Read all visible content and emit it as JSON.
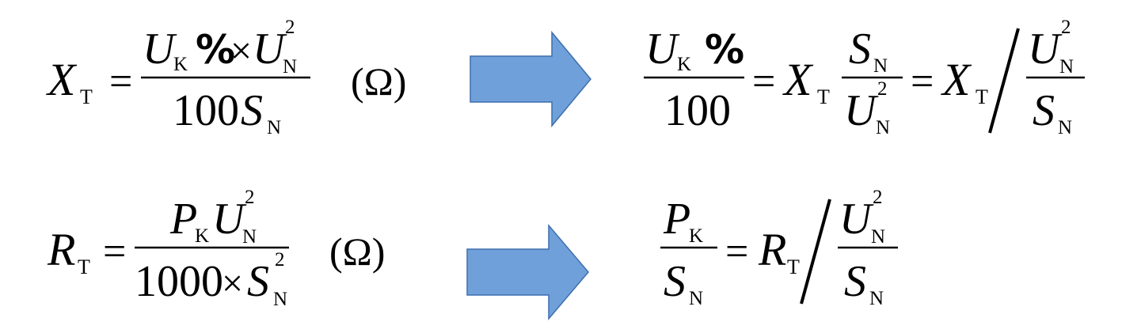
{
  "formulas": {
    "xt": {
      "lhs_main": "X",
      "lhs_sub": "T",
      "equals": "=",
      "num_u1": "U",
      "num_k": "K",
      "num_pct": "%",
      "num_times": "×",
      "num_u2": "U",
      "num_n1": "N",
      "num_sq": "2",
      "den_100": "100",
      "den_s": "S",
      "den_n": "N",
      "unit": "(Ω)"
    },
    "xt_derived": {
      "frac_u": "U",
      "frac_k": "K",
      "frac_pct": "%",
      "frac_den": "100",
      "eq1": "=",
      "x1": "X",
      "t1": "T",
      "s_num": "S",
      "s_num_n": "N",
      "u_den": "U",
      "u_den_n": "N",
      "u_den_sq": "2",
      "eq2": "=",
      "x2": "X",
      "t2": "T",
      "r_num_u": "U",
      "r_num_n": "N",
      "r_num_sq": "2",
      "r_den_s": "S",
      "r_den_n": "N"
    },
    "rt": {
      "lhs_main": "R",
      "lhs_sub": "T",
      "equals": "=",
      "num_p": "P",
      "num_k": "K",
      "num_u": "U",
      "num_n": "N",
      "num_sq": "2",
      "den_1000": "1000",
      "den_times": "×",
      "den_s": "S",
      "den_n": "N",
      "den_sq": "2",
      "unit": "(Ω)"
    },
    "rt_derived": {
      "p": "P",
      "k": "K",
      "s": "S",
      "s_n": "N",
      "eq": "=",
      "r": "R",
      "t": "T",
      "u": "U",
      "u_n": "N",
      "u_sq": "2",
      "s2": "S",
      "s2_n": "N"
    }
  },
  "colors": {
    "arrow_fill": "#6fa0da",
    "arrow_stroke": "#3f6fae",
    "text": "#000000"
  }
}
